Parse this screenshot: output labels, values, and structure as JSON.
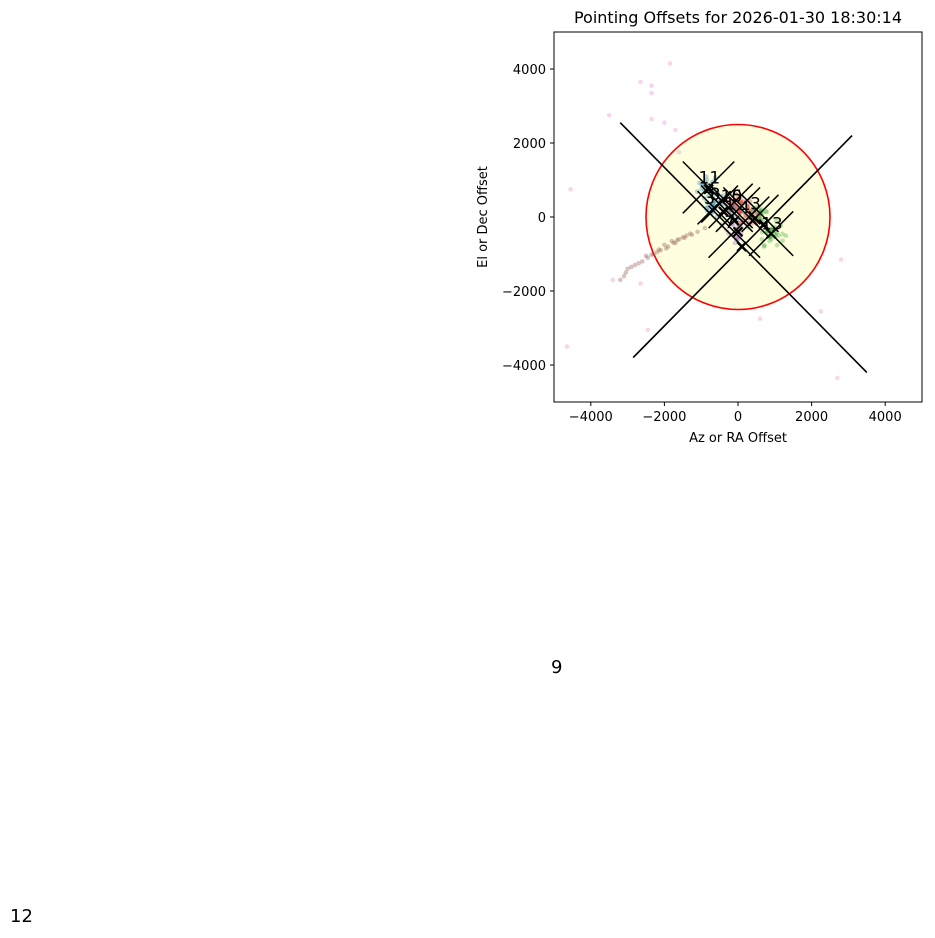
{
  "chart_data": {
    "type": "scatter",
    "title": "Pointing Offsets for 2026-01-30 18:30:14",
    "xlabel": "Az or RA Offset",
    "ylabel": "El or Dec Offset",
    "xlim": [
      -5000,
      5000
    ],
    "ylim": [
      -5000,
      5000
    ],
    "xticks": [
      -4000,
      -2000,
      0,
      2000,
      4000
    ],
    "yticks": [
      -4000,
      -2000,
      0,
      2000,
      4000
    ],
    "xtick_labels": [
      "−4000",
      "−2000",
      "0",
      "2000",
      "4000"
    ],
    "ytick_labels": [
      "−4000",
      "−2000",
      "0",
      "2000",
      "4000"
    ],
    "grid": false,
    "background_color": "#ffffe0",
    "circle": {
      "center": [
        0,
        0
      ],
      "radius": 2500,
      "color": "#ff0000"
    },
    "big_cross": {
      "center": [
        0,
        0
      ],
      "lines": [
        [
          [
            -3200,
            2550
          ],
          [
            3500,
            -4200
          ]
        ],
        [
          [
            -2850,
            -3800
          ],
          [
            3100,
            2200
          ]
        ]
      ],
      "color": "#000000"
    },
    "groups": [
      {
        "label": "11",
        "color": "#1f77b4",
        "center": [
          -800,
          800
        ],
        "spread": [
          250,
          350
        ],
        "count": 25,
        "half": 700
      },
      {
        "label": "8",
        "color": "#1f77b4",
        "center": [
          -500,
          350
        ],
        "spread": [
          250,
          250
        ],
        "count": 15,
        "half": 500
      },
      {
        "label": "3",
        "color": "#1f77b4",
        "center": [
          -650,
          250
        ],
        "spread": [
          200,
          200
        ],
        "count": 12,
        "half": 450
      },
      {
        "label": "10",
        "color": "#d62728",
        "center": [
          -200,
          300
        ],
        "spread": [
          200,
          200
        ],
        "count": 15,
        "half": 600
      },
      {
        "label": "1",
        "color": "#1f77b4",
        "center": [
          -100,
          100
        ],
        "spread": [
          200,
          200
        ],
        "count": 12,
        "half": 500
      },
      {
        "label": "5",
        "color": "#d62728",
        "center": [
          100,
          300
        ],
        "spread": [
          250,
          250
        ],
        "count": 20,
        "half": 500
      },
      {
        "label": "4",
        "color": "#d62728",
        "center": [
          300,
          0
        ],
        "spread": [
          250,
          200
        ],
        "count": 20,
        "half": 550
      },
      {
        "label": "7",
        "color": "#9467bd",
        "center": [
          -100,
          -400
        ],
        "spread": [
          250,
          300
        ],
        "count": 22,
        "half": 700
      },
      {
        "label": "3",
        "color": "#2ca02c",
        "center": [
          600,
          100
        ],
        "spread": [
          250,
          250
        ],
        "count": 25,
        "half": 500
      },
      {
        "label": "13",
        "color": "#2ca02c",
        "center": [
          900,
          -450
        ],
        "spread": [
          300,
          250
        ],
        "count": 30,
        "half": 600
      }
    ],
    "trail_points": [
      [
        -2300,
        -1000
      ],
      [
        -2100,
        -900
      ],
      [
        -1900,
        -800
      ],
      [
        -1700,
        -700
      ],
      [
        -1500,
        -550
      ],
      [
        -1300,
        -450
      ],
      [
        -2500,
        -1050
      ],
      [
        -2700,
        -1250
      ],
      [
        -2900,
        -1350
      ],
      [
        -3100,
        -1600
      ],
      [
        -2000,
        -750
      ],
      [
        -1800,
        -650
      ],
      [
        -1600,
        -600
      ],
      [
        -1400,
        -500
      ],
      [
        -1100,
        -400
      ],
      [
        -900,
        -300
      ],
      [
        -2450,
        -1100
      ],
      [
        -3000,
        -1400
      ],
      [
        -3200,
        -1700
      ],
      [
        -2200,
        -950
      ],
      [
        -1750,
        -700
      ],
      [
        -1250,
        -480
      ],
      [
        -2600,
        -1200
      ],
      [
        -2800,
        -1300
      ],
      [
        -1950,
        -850
      ],
      [
        -1650,
        -620
      ],
      [
        -2350,
        -1020
      ],
      [
        -3050,
        -1500
      ],
      [
        -1450,
        -560
      ],
      [
        -2150,
        -880
      ]
    ],
    "outlier_points": [
      [
        -1850,
        4150
      ],
      [
        -2650,
        3650
      ],
      [
        -2350,
        3550
      ],
      [
        -2350,
        3350
      ],
      [
        -3500,
        2750
      ],
      [
        -2350,
        2650
      ],
      [
        -2000,
        2550
      ],
      [
        -4550,
        750
      ],
      [
        -4650,
        -3500
      ],
      [
        -2450,
        -3050
      ],
      [
        2700,
        -4350
      ],
      [
        2250,
        -2550
      ],
      [
        2800,
        -1150
      ],
      [
        600,
        -2750
      ],
      [
        -3400,
        -1700
      ],
      [
        -2650,
        -1800
      ],
      [
        -1700,
        2350
      ],
      [
        -1600,
        1750
      ]
    ],
    "mean_markers": [
      [
        -800,
        750
      ],
      [
        -400,
        150
      ],
      [
        -100,
        -100
      ],
      [
        0,
        -400
      ],
      [
        100,
        -800
      ],
      [
        400,
        -100
      ],
      [
        700,
        -200
      ],
      [
        900,
        -450
      ]
    ],
    "stray_labels": [
      "9",
      "12"
    ]
  }
}
